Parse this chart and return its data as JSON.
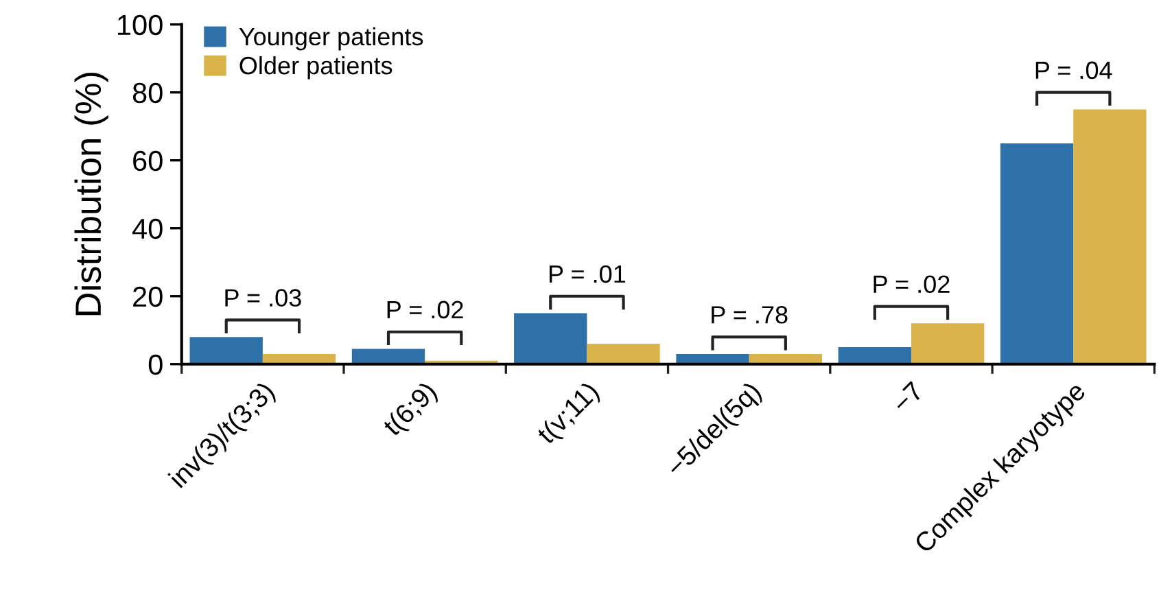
{
  "chart_data": {
    "type": "bar",
    "ylabel": "Distribution (%)",
    "categories": [
      "inv(3)/t(3;3)",
      "t(6;9)",
      "t(v;11)",
      "−5/del(5q)",
      "−7",
      "Complex karyotype"
    ],
    "series": [
      {
        "name": "Younger patients",
        "color": "#2e71a8",
        "values": [
          8,
          4.5,
          15,
          3,
          5,
          65
        ]
      },
      {
        "name": "Older patients",
        "color": "#d9b44a",
        "values": [
          3,
          1,
          6,
          3,
          12,
          75
        ]
      }
    ],
    "annotations": [
      "P = .03",
      "P = .02",
      "P = .01",
      "P = .78",
      "P = .02",
      "P = .04"
    ],
    "ylim": [
      0,
      100
    ],
    "yticks": [
      0,
      20,
      40,
      60,
      80,
      100
    ],
    "grid": false,
    "legend": "top left"
  }
}
